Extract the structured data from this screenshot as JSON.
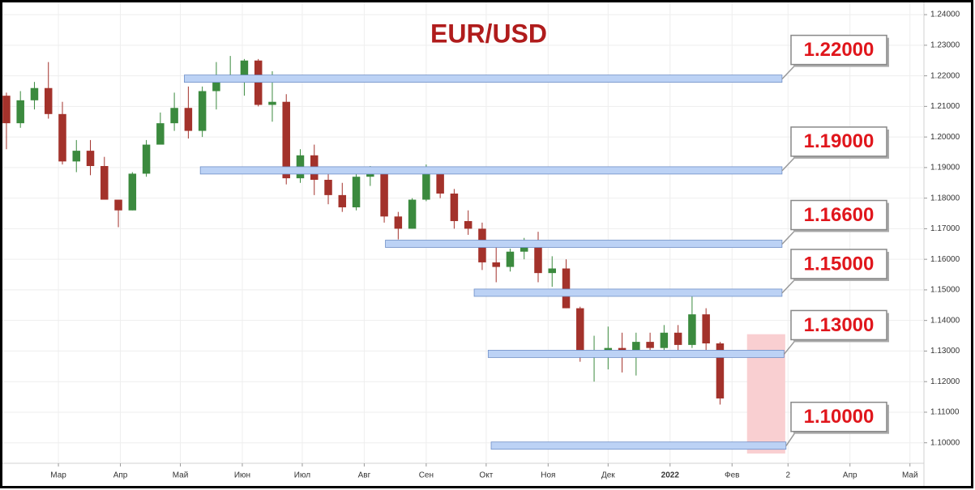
{
  "chart_data": {
    "type": "candlestick",
    "title": "EUR/USD",
    "x": [
      33,
      40,
      47,
      54,
      61,
      68,
      75,
      82,
      89,
      96,
      103,
      110,
      117,
      124,
      131,
      138,
      145,
      152,
      159,
      166,
      173,
      180,
      187,
      194,
      201,
      208,
      215,
      222,
      229,
      236,
      243,
      250,
      257,
      264,
      271,
      278,
      285,
      292,
      299,
      306,
      313,
      320,
      327,
      334,
      341,
      348,
      355,
      362,
      369,
      376,
      383,
      390
    ],
    "open": [
      1.2135,
      1.2045,
      1.212,
      1.216,
      1.2075,
      1.192,
      1.1955,
      1.1905,
      1.1795,
      1.176,
      1.188,
      1.1975,
      1.2045,
      1.2095,
      1.202,
      1.215,
      1.218,
      1.2195,
      1.225,
      1.2105,
      1.2115,
      1.1865,
      1.194,
      1.186,
      1.181,
      1.177,
      1.187,
      1.188,
      1.174,
      1.17,
      1.1795,
      1.188,
      1.1815,
      1.1725,
      1.17,
      1.159,
      1.1575,
      1.1625,
      1.1645,
      1.1555,
      1.157,
      1.144,
      1.129,
      1.129,
      1.131,
      1.129,
      1.133,
      1.131,
      1.136,
      1.132,
      1.142,
      1.1325
    ],
    "high": [
      1.2145,
      1.215,
      1.218,
      1.2245,
      1.2115,
      1.199,
      1.199,
      1.1935,
      1.179,
      1.1885,
      1.199,
      1.208,
      1.2145,
      1.2165,
      1.2165,
      1.2245,
      1.2265,
      1.2255,
      1.2255,
      1.2215,
      1.214,
      1.196,
      1.1975,
      1.1885,
      1.185,
      1.19,
      1.1905,
      1.189,
      1.1755,
      1.18,
      1.191,
      1.1875,
      1.183,
      1.176,
      1.172,
      1.164,
      1.1635,
      1.167,
      1.169,
      1.161,
      1.16,
      1.1445,
      1.135,
      1.138,
      1.136,
      1.136,
      1.136,
      1.1385,
      1.1385,
      1.148,
      1.144,
      1.133
    ],
    "low": [
      1.196,
      1.203,
      1.209,
      1.206,
      1.191,
      1.1885,
      1.1875,
      1.18,
      1.1705,
      1.176,
      1.187,
      1.199,
      1.202,
      1.1995,
      1.2,
      1.209,
      1.218,
      1.2135,
      1.21,
      1.205,
      1.1845,
      1.185,
      1.181,
      1.178,
      1.1755,
      1.176,
      1.184,
      1.172,
      1.1665,
      1.17,
      1.179,
      1.18,
      1.17,
      1.168,
      1.1565,
      1.1525,
      1.156,
      1.16,
      1.1525,
      1.151,
      1.144,
      1.1265,
      1.12,
      1.124,
      1.123,
      1.122,
      1.128,
      1.129,
      1.13,
      1.131,
      1.13,
      1.1125
    ],
    "close": [
      1.2045,
      1.212,
      1.216,
      1.2075,
      1.192,
      1.1955,
      1.1905,
      1.1795,
      1.176,
      1.188,
      1.1975,
      1.2045,
      1.2095,
      1.202,
      1.215,
      1.218,
      1.2195,
      1.225,
      1.2105,
      1.2115,
      1.1865,
      1.194,
      1.186,
      1.181,
      1.177,
      1.187,
      1.188,
      1.174,
      1.17,
      1.1795,
      1.188,
      1.1815,
      1.1725,
      1.17,
      1.159,
      1.1575,
      1.1625,
      1.1645,
      1.1555,
      1.157,
      1.144,
      1.129,
      1.129,
      1.131,
      1.129,
      1.133,
      1.131,
      1.136,
      1.132,
      1.142,
      1.1325,
      1.1145
    ],
    "up_color": "#3b8a3e",
    "down_color": "#a3322b",
    "xlim": [
      31,
      492
    ],
    "ylim": [
      1.0933,
      1.244
    ],
    "xticks": [
      {
        "value": 59,
        "label": "Мар"
      },
      {
        "value": 90,
        "label": "Апр"
      },
      {
        "value": 120,
        "label": "Май"
      },
      {
        "value": 151,
        "label": "Июн"
      },
      {
        "value": 181,
        "label": "Июл"
      },
      {
        "value": 212,
        "label": "Авг"
      },
      {
        "value": 243,
        "label": "Сен"
      },
      {
        "value": 273,
        "label": "Окт"
      },
      {
        "value": 304,
        "label": "Ноя"
      },
      {
        "value": 334,
        "label": "Дек"
      },
      {
        "value": 365,
        "label": "2022"
      },
      {
        "value": 396,
        "label": "Фев"
      },
      {
        "value": 424,
        "label": "2"
      },
      {
        "value": 455,
        "label": "Апр"
      },
      {
        "value": 485,
        "label": "Май"
      }
    ],
    "yticks": [
      {
        "value": 1.24,
        "label": "1.24000"
      },
      {
        "value": 1.23,
        "label": "1.23000"
      },
      {
        "value": 1.22,
        "label": "1.22000"
      },
      {
        "value": 1.21,
        "label": "1.21000"
      },
      {
        "value": 1.2,
        "label": "1.20000"
      },
      {
        "value": 1.19,
        "label": "1.19000"
      },
      {
        "value": 1.18,
        "label": "1.18000"
      },
      {
        "value": 1.17,
        "label": "1.17000"
      },
      {
        "value": 1.16,
        "label": "1.16000"
      },
      {
        "value": 1.15,
        "label": "1.15000"
      },
      {
        "value": 1.14,
        "label": "1.14000"
      },
      {
        "value": 1.13,
        "label": "1.13000"
      },
      {
        "value": 1.12,
        "label": "1.12000"
      },
      {
        "value": 1.11,
        "label": "1.11000"
      },
      {
        "value": 1.1,
        "label": "1.10000"
      }
    ],
    "grid": true,
    "levels": [
      {
        "value": 1.22,
        "label": "1.22000",
        "start": 122,
        "end": 421
      },
      {
        "value": 1.19,
        "label": "1.19000",
        "start": 130,
        "end": 421
      },
      {
        "value": 1.166,
        "label": "1.16600",
        "start": 222.6,
        "end": 421
      },
      {
        "value": 1.15,
        "label": "1.15000",
        "start": 267,
        "end": 421
      },
      {
        "value": 1.13,
        "label": "1.13000",
        "start": 274,
        "end": 422
      },
      {
        "value": 1.1,
        "label": "1.10000",
        "start": 275.5,
        "end": 423
      }
    ],
    "level_color": "#bcd2f5",
    "highlight": {
      "x": [
        403.5,
        422.6
      ],
      "y": [
        1.0965,
        1.1355
      ],
      "color": "#f9cfd1"
    }
  }
}
